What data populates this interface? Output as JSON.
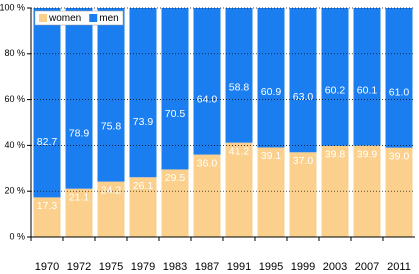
{
  "chart_data": {
    "type": "stacked-bar",
    "categories": [
      "1970",
      "1972",
      "1975",
      "1979",
      "1983",
      "1987",
      "1991",
      "1995",
      "1999",
      "2003",
      "2007",
      "2011"
    ],
    "series": [
      {
        "name": "women",
        "color": "#fad08c",
        "values": [
          17.3,
          21.1,
          24.2,
          26.1,
          29.5,
          36.0,
          41.2,
          39.1,
          37.0,
          39.8,
          39.9,
          39.0
        ],
        "value_labels": [
          "17.3",
          "21.1",
          "24.2",
          "26.1",
          "29.5",
          "36.0",
          "41.2",
          "39.1",
          "37.0",
          "39.8",
          "39.9",
          "39.0"
        ]
      },
      {
        "name": "men",
        "color": "#1a7ef0",
        "values": [
          82.7,
          78.9,
          75.8,
          73.9,
          70.5,
          64.0,
          58.8,
          60.9,
          63.0,
          60.2,
          60.1,
          61.0
        ],
        "value_labels": [
          "82.7",
          "78.9",
          "75.8",
          "73.9",
          "70.5",
          "64.0",
          "58.8",
          "60.9",
          "63.0",
          "60.2",
          "60.1",
          "61.0"
        ]
      }
    ],
    "ylim": [
      0,
      100
    ],
    "yticks": [
      {
        "value": 0,
        "label": "0 %"
      },
      {
        "value": 20,
        "label": "20 %"
      },
      {
        "value": 40,
        "label": "40 %"
      },
      {
        "value": 60,
        "label": "60 %"
      },
      {
        "value": 80,
        "label": "80 %"
      },
      {
        "value": 100,
        "label": "100 %"
      }
    ],
    "grid": true,
    "legend": "top-left"
  }
}
